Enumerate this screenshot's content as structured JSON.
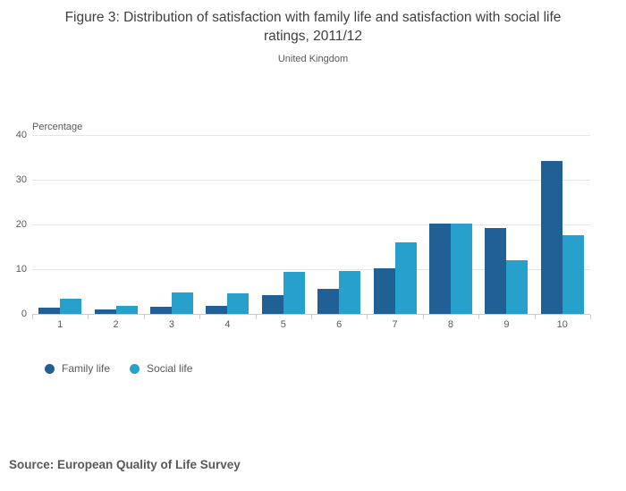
{
  "header": {
    "title": "Figure 3: Distribution of satisfaction with family life and satisfaction with social life ratings, 2011/12",
    "subtitle": "United Kingdom"
  },
  "chart_data": {
    "type": "bar",
    "grouped": true,
    "title": "Figure 3: Distribution of satisfaction with family life and satisfaction with social life ratings, 2011/12",
    "subtitle": "United Kingdom",
    "ylabel": "Percentage",
    "xlabel": "",
    "categories": [
      "1",
      "2",
      "3",
      "4",
      "5",
      "6",
      "7",
      "8",
      "9",
      "10"
    ],
    "series": [
      {
        "name": "Family life",
        "color": "#206095",
        "values": [
          1.4,
          1.1,
          1.7,
          1.9,
          4.3,
          5.7,
          10.2,
          20.2,
          19.2,
          34.2
        ]
      },
      {
        "name": "Social life",
        "color": "#27A0CC",
        "values": [
          3.5,
          1.9,
          4.9,
          4.7,
          9.4,
          9.6,
          16.0,
          20.2,
          12.0,
          17.6
        ]
      }
    ],
    "ylim": [
      0,
      40
    ],
    "yticks": [
      0,
      10,
      20,
      30,
      40
    ],
    "grid": "horizontal",
    "legend_position": "bottom-left"
  },
  "source": {
    "text": "Source: European Quality of Life Survey"
  },
  "colors": {
    "family_life": "#206095",
    "social_life": "#27A0CC",
    "gridline": "#e6e6e6",
    "axis": "#c3cfdd",
    "label_text": "#595959",
    "title_text": "#3f3f3f"
  }
}
